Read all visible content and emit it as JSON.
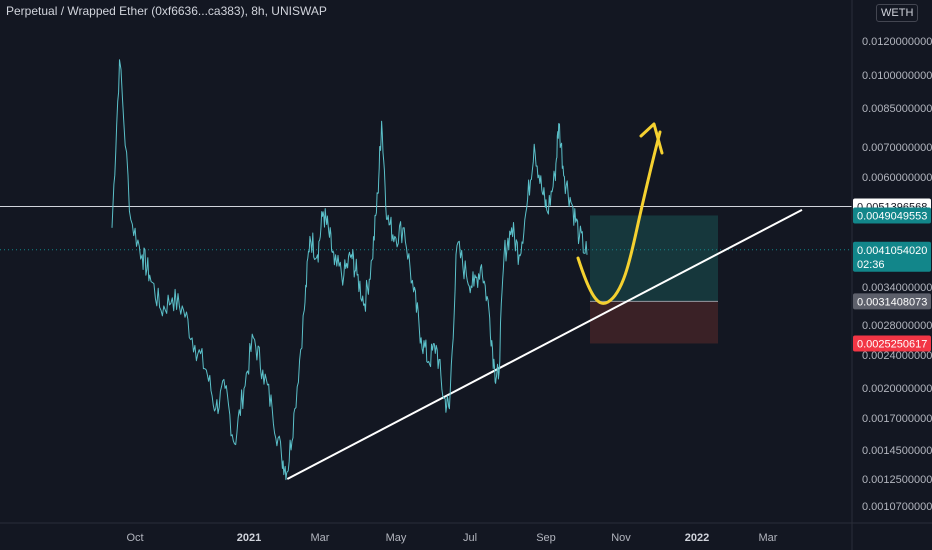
{
  "header": {
    "title": "Perpetual / Wrapped Ether (0xf6636...ca383), 8h, UNISWAP",
    "currency": "WETH"
  },
  "colors": {
    "background": "#131722",
    "price_line": "#5bc0c9",
    "trend_line": "#ffffff",
    "drawing": "#f5d130",
    "target_zone": "#173b3f",
    "stop_zone": "#3f2227",
    "teal_label": "#12868a",
    "gray_label": "#5d606b",
    "red_label": "#f23645"
  },
  "chart_data": {
    "type": "line",
    "title": "Perpetual / Wrapped Ether (0xf6636...ca383), 8h, UNISWAP",
    "interval": "8h",
    "exchange": "UNISWAP",
    "x_tick_labels": [
      "Oct",
      "2021",
      "Mar",
      "May",
      "Jul",
      "Sep",
      "Nov",
      "2022",
      "Mar"
    ],
    "y_tick_labels": [
      "0.0120000000",
      "0.0100000000",
      "0.0085000000",
      "0.0070000000",
      "0.0060000000",
      "0.0034000000",
      "0.0028000000",
      "0.0024000000",
      "0.0020000000",
      "0.0017000000",
      "0.0014500000",
      "0.0012500000",
      "0.0010700000"
    ],
    "y_scale": "log",
    "y_range": [
      0.001,
      0.015
    ],
    "series": [
      {
        "values": [
          [
            0.0,
            0.0046
          ],
          [
            0.4,
            0.011
          ],
          [
            1.0,
            0.0048
          ],
          [
            1.6,
            0.004
          ],
          [
            2.0,
            0.0036
          ],
          [
            2.6,
            0.003
          ],
          [
            3.2,
            0.0032
          ],
          [
            3.8,
            0.003
          ],
          [
            4.4,
            0.0025
          ],
          [
            5.0,
            0.0022
          ],
          [
            5.5,
            0.0018
          ],
          [
            6.0,
            0.002
          ],
          [
            6.5,
            0.0015
          ],
          [
            7.0,
            0.002
          ],
          [
            7.5,
            0.0026
          ],
          [
            8.0,
            0.0022
          ],
          [
            8.5,
            0.0018
          ],
          [
            9.0,
            0.0014
          ],
          [
            9.3,
            0.0013
          ],
          [
            9.7,
            0.0018
          ],
          [
            10.2,
            0.003
          ],
          [
            10.5,
            0.0044
          ],
          [
            10.9,
            0.004
          ],
          [
            11.2,
            0.005
          ],
          [
            11.5,
            0.0045
          ],
          [
            11.8,
            0.0038
          ],
          [
            12.3,
            0.0036
          ],
          [
            12.7,
            0.004
          ],
          [
            13.0,
            0.0036
          ],
          [
            13.4,
            0.0031
          ],
          [
            13.8,
            0.0039
          ],
          [
            14.1,
            0.0055
          ],
          [
            14.3,
            0.008
          ],
          [
            14.6,
            0.0048
          ],
          [
            15.0,
            0.0044
          ],
          [
            15.5,
            0.0046
          ],
          [
            16.0,
            0.0033
          ],
          [
            16.4,
            0.0026
          ],
          [
            16.8,
            0.0023
          ],
          [
            17.2,
            0.0025
          ],
          [
            17.6,
            0.0019
          ],
          [
            17.9,
            0.0018
          ],
          [
            18.3,
            0.0042
          ],
          [
            18.8,
            0.0036
          ],
          [
            19.2,
            0.0034
          ],
          [
            19.6,
            0.0038
          ],
          [
            20.0,
            0.003
          ],
          [
            20.3,
            0.0022
          ],
          [
            20.5,
            0.0021
          ],
          [
            20.8,
            0.004
          ],
          [
            21.2,
            0.0046
          ],
          [
            21.6,
            0.004
          ],
          [
            22.0,
            0.0051
          ],
          [
            22.4,
            0.0071
          ],
          [
            22.8,
            0.0056
          ],
          [
            23.1,
            0.005
          ],
          [
            23.5,
            0.006
          ],
          [
            23.7,
            0.0079
          ],
          [
            24.0,
            0.006
          ],
          [
            24.4,
            0.0052
          ],
          [
            24.8,
            0.0044
          ],
          [
            25.2,
            0.004
          ]
        ]
      }
    ],
    "trend_line": [
      [
        9.3,
        0.00125
      ],
      [
        30.0,
        0.00505
      ]
    ],
    "horizontal_level": 0.0051396568,
    "last_price": 0.004105402,
    "position_tool": {
      "target": 0.0049049553,
      "entry": 0.0031408073,
      "stop": 0.0025250617
    },
    "price_labels": [
      {
        "value": "0.0051396568",
        "kind": "white"
      },
      {
        "value": "0.0049049553",
        "kind": "teal"
      },
      {
        "value": "0.0041054020",
        "kind": "teal",
        "sub": "02:36"
      },
      {
        "value": "0.0031408073",
        "kind": "gray"
      },
      {
        "value": "0.0025250617",
        "kind": "red"
      }
    ],
    "grid": false,
    "legend": "none"
  }
}
